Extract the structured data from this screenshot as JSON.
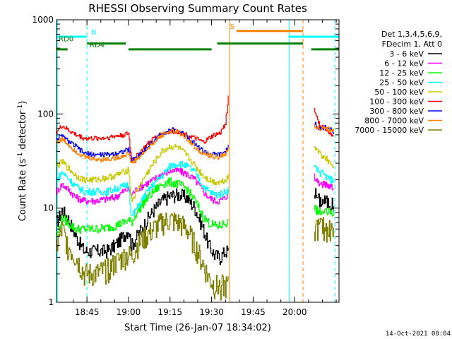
{
  "chart_data": {
    "type": "line",
    "title": "RHESSI Observing Summary Count Rates",
    "xlabel": "Start Time (26-Jan-07 18:34:02)",
    "ylabel_main": "Count Rate (s",
    "ylabel_sup1": "-1",
    "ylabel_mid": " detector",
    "ylabel_sup2": "-1",
    "ylabel_end": ")",
    "y_scale": "log",
    "ylim": [
      1,
      1000
    ],
    "xlim_minutes": [
      34,
      136
    ],
    "x_ticks": [
      {
        "minute": 45,
        "label": "18:45"
      },
      {
        "minute": 60,
        "label": "19:00"
      },
      {
        "minute": 75,
        "label": "19:15"
      },
      {
        "minute": 90,
        "label": "19:30"
      },
      {
        "minute": 105,
        "label": "19:45"
      },
      {
        "minute": 120,
        "label": "20:00"
      }
    ],
    "y_ticks": [
      {
        "value": 1,
        "label": "1"
      },
      {
        "value": 10,
        "label": "10"
      },
      {
        "value": 100,
        "label": "100"
      },
      {
        "value": 1000,
        "label": "1000"
      }
    ],
    "legend_header": [
      "Det 1,3,4,5,6,9,",
      "FDecim 1, Att 0"
    ],
    "legend_position": "right",
    "series": [
      {
        "name": "3 - 6 keV",
        "color": "#000000",
        "points": [
          [
            34,
            7
          ],
          [
            36,
            9.5
          ],
          [
            38,
            8
          ],
          [
            41,
            5
          ],
          [
            44,
            3.5
          ],
          [
            48,
            3.5
          ],
          [
            52,
            3.5
          ],
          [
            55,
            4
          ],
          [
            58,
            5
          ],
          [
            60,
            6
          ],
          [
            61,
            4
          ],
          [
            63,
            5
          ],
          [
            66,
            7
          ],
          [
            69,
            9.5
          ],
          [
            72,
            12
          ],
          [
            75,
            13.5
          ],
          [
            78,
            14
          ],
          [
            81,
            13
          ],
          [
            84,
            10
          ],
          [
            87,
            6
          ],
          [
            89,
            4
          ],
          [
            91,
            3.2
          ],
          [
            93,
            3
          ],
          [
            95,
            3.5
          ],
          [
            96,
            3.5
          ]
        ]
      },
      {
        "name": "6 - 12 keV",
        "color": "#ff00ff",
        "points": [
          [
            34,
            15
          ],
          [
            36,
            18
          ],
          [
            38,
            16
          ],
          [
            41,
            13
          ],
          [
            44,
            12
          ],
          [
            48,
            12
          ],
          [
            52,
            12.5
          ],
          [
            55,
            13
          ],
          [
            58,
            15
          ],
          [
            60,
            16
          ],
          [
            61,
            14
          ],
          [
            63,
            16
          ],
          [
            66,
            18
          ],
          [
            69,
            20
          ],
          [
            72,
            23
          ],
          [
            75,
            25
          ],
          [
            78,
            25
          ],
          [
            81,
            23
          ],
          [
            84,
            20
          ],
          [
            87,
            15
          ],
          [
            89,
            13
          ],
          [
            91,
            12
          ],
          [
            93,
            12
          ],
          [
            95,
            13
          ],
          [
            96,
            15
          ]
        ]
      },
      {
        "name": "12 - 25 keV",
        "color": "#00ff00",
        "points": [
          [
            34,
            5
          ],
          [
            36,
            8
          ],
          [
            38,
            7
          ],
          [
            41,
            6
          ],
          [
            44,
            6
          ],
          [
            48,
            6
          ],
          [
            52,
            6.2
          ],
          [
            55,
            6.5
          ],
          [
            58,
            7
          ],
          [
            60,
            7.5
          ],
          [
            61,
            7
          ],
          [
            63,
            9
          ],
          [
            66,
            12
          ],
          [
            69,
            15
          ],
          [
            72,
            18
          ],
          [
            75,
            19
          ],
          [
            78,
            18
          ],
          [
            81,
            16
          ],
          [
            84,
            12
          ],
          [
            87,
            8
          ],
          [
            89,
            7
          ],
          [
            91,
            6.5
          ],
          [
            93,
            6.5
          ],
          [
            95,
            7
          ],
          [
            96,
            7
          ]
        ]
      },
      {
        "name": "25 - 50 keV",
        "color": "#00ffff",
        "points": [
          [
            34,
            20
          ],
          [
            36,
            24
          ],
          [
            38,
            21
          ],
          [
            41,
            17
          ],
          [
            44,
            15
          ],
          [
            48,
            15
          ],
          [
            52,
            15
          ],
          [
            55,
            16
          ],
          [
            58,
            17
          ],
          [
            60,
            18
          ],
          [
            61,
            8
          ],
          [
            63,
            10
          ],
          [
            66,
            14
          ],
          [
            69,
            18
          ],
          [
            72,
            22
          ],
          [
            75,
            28
          ],
          [
            78,
            30
          ],
          [
            81,
            28
          ],
          [
            84,
            24
          ],
          [
            87,
            17
          ],
          [
            89,
            15
          ],
          [
            91,
            14
          ],
          [
            93,
            14
          ],
          [
            95,
            15
          ],
          [
            96,
            16
          ]
        ]
      },
      {
        "name": "50 - 100 keV",
        "color": "#c8c800",
        "points": [
          [
            34,
            28
          ],
          [
            36,
            31
          ],
          [
            38,
            27
          ],
          [
            41,
            22
          ],
          [
            44,
            20
          ],
          [
            48,
            20
          ],
          [
            52,
            21
          ],
          [
            55,
            22
          ],
          [
            58,
            24
          ],
          [
            60,
            26
          ],
          [
            61,
            12
          ],
          [
            63,
            15
          ],
          [
            66,
            22
          ],
          [
            69,
            30
          ],
          [
            72,
            40
          ],
          [
            75,
            45
          ],
          [
            78,
            44
          ],
          [
            81,
            36
          ],
          [
            84,
            28
          ],
          [
            87,
            22
          ],
          [
            89,
            20
          ],
          [
            91,
            19
          ],
          [
            93,
            19
          ],
          [
            95,
            20
          ],
          [
            96,
            22
          ]
        ]
      },
      {
        "name": "100 - 300 keV",
        "color": "#ff0000",
        "points": [
          [
            34,
            65
          ],
          [
            36,
            75
          ],
          [
            38,
            68
          ],
          [
            41,
            60
          ],
          [
            44,
            55
          ],
          [
            48,
            55
          ],
          [
            52,
            56
          ],
          [
            55,
            58
          ],
          [
            58,
            60
          ],
          [
            60,
            62
          ],
          [
            61,
            33
          ],
          [
            63,
            36
          ],
          [
            66,
            45
          ],
          [
            69,
            55
          ],
          [
            72,
            62
          ],
          [
            75,
            65
          ],
          [
            78,
            65
          ],
          [
            81,
            60
          ],
          [
            84,
            55
          ],
          [
            87,
            50
          ],
          [
            89,
            55
          ],
          [
            91,
            60
          ],
          [
            93,
            62
          ],
          [
            95,
            80
          ],
          [
            96,
            150
          ]
        ]
      },
      {
        "name": "300 - 800 keV",
        "color": "#0000ff",
        "points": [
          [
            34,
            55
          ],
          [
            36,
            58
          ],
          [
            38,
            52
          ],
          [
            41,
            45
          ],
          [
            44,
            38
          ],
          [
            48,
            37
          ],
          [
            52,
            37
          ],
          [
            55,
            38
          ],
          [
            58,
            40
          ],
          [
            60,
            42
          ],
          [
            61,
            32
          ],
          [
            63,
            35
          ],
          [
            66,
            42
          ],
          [
            69,
            52
          ],
          [
            72,
            62
          ],
          [
            75,
            68
          ],
          [
            78,
            66
          ],
          [
            81,
            58
          ],
          [
            84,
            48
          ],
          [
            87,
            40
          ],
          [
            89,
            38
          ],
          [
            91,
            37
          ],
          [
            93,
            37
          ],
          [
            95,
            40
          ],
          [
            96,
            45
          ]
        ]
      },
      {
        "name": "800 - 7000 keV",
        "color": "#ff8000",
        "points": [
          [
            34,
            50
          ],
          [
            36,
            54
          ],
          [
            38,
            48
          ],
          [
            41,
            40
          ],
          [
            44,
            35
          ],
          [
            48,
            33
          ],
          [
            52,
            33
          ],
          [
            55,
            34
          ],
          [
            58,
            36
          ],
          [
            60,
            38
          ],
          [
            61,
            30
          ],
          [
            63,
            33
          ],
          [
            66,
            40
          ],
          [
            69,
            50
          ],
          [
            72,
            60
          ],
          [
            75,
            66
          ],
          [
            78,
            64
          ],
          [
            81,
            55
          ],
          [
            84,
            44
          ],
          [
            87,
            38
          ],
          [
            89,
            36
          ],
          [
            91,
            35
          ],
          [
            93,
            35
          ],
          [
            95,
            38
          ],
          [
            96,
            42
          ]
        ]
      },
      {
        "name": "7000 - 15000 keV",
        "color": "#808000",
        "points": [
          [
            34,
            4
          ],
          [
            36,
            6
          ],
          [
            38,
            4
          ],
          [
            41,
            3
          ],
          [
            44,
            2
          ],
          [
            48,
            2
          ],
          [
            52,
            2.2
          ],
          [
            55,
            2.6
          ],
          [
            58,
            3
          ],
          [
            60,
            3.2
          ],
          [
            61,
            3
          ],
          [
            63,
            4
          ],
          [
            66,
            5
          ],
          [
            69,
            6
          ],
          [
            72,
            7
          ],
          [
            75,
            7.5
          ],
          [
            78,
            7
          ],
          [
            81,
            6
          ],
          [
            84,
            4
          ],
          [
            87,
            2.5
          ],
          [
            89,
            1.8
          ],
          [
            91,
            1.5
          ],
          [
            93,
            1.5
          ],
          [
            95,
            1.5
          ],
          [
            96,
            1.5
          ]
        ]
      }
    ],
    "series_after_gap": [
      {
        "name": "3 - 6 keV",
        "points": [
          [
            127,
            15
          ],
          [
            129,
            12
          ],
          [
            131,
            12
          ],
          [
            133,
            11
          ],
          [
            134,
            11
          ]
        ]
      },
      {
        "name": "6 - 12 keV",
        "points": [
          [
            127,
            22
          ],
          [
            129,
            18
          ],
          [
            131,
            18
          ],
          [
            133,
            17
          ],
          [
            134,
            17
          ]
        ]
      },
      {
        "name": "12 - 25 keV",
        "points": [
          [
            127,
            10
          ],
          [
            129,
            9
          ],
          [
            131,
            9
          ],
          [
            133,
            9
          ],
          [
            134,
            9
          ]
        ]
      },
      {
        "name": "25 - 50 keV",
        "points": [
          [
            127,
            27
          ],
          [
            129,
            24
          ],
          [
            131,
            22
          ],
          [
            133,
            20
          ],
          [
            134,
            20
          ]
        ]
      },
      {
        "name": "50 - 100 keV",
        "points": [
          [
            127,
            45
          ],
          [
            129,
            38
          ],
          [
            131,
            34
          ],
          [
            133,
            30
          ],
          [
            134,
            28
          ]
        ]
      },
      {
        "name": "100 - 300 keV",
        "points": [
          [
            127,
            110
          ],
          [
            129,
            75
          ],
          [
            131,
            70
          ],
          [
            133,
            62
          ],
          [
            134,
            60
          ]
        ]
      },
      {
        "name": "300 - 800 keV",
        "points": [
          [
            127,
            80
          ],
          [
            129,
            70
          ],
          [
            131,
            72
          ],
          [
            133,
            68
          ],
          [
            134,
            65
          ]
        ]
      },
      {
        "name": "800 - 7000 keV",
        "points": [
          [
            127,
            75
          ],
          [
            129,
            70
          ],
          [
            131,
            70
          ],
          [
            133,
            68
          ],
          [
            134,
            68
          ]
        ]
      },
      {
        "name": "7000 - 15000 keV",
        "points": [
          [
            127,
            6
          ],
          [
            129,
            6.5
          ],
          [
            131,
            6
          ],
          [
            133,
            6
          ],
          [
            134,
            6
          ]
        ]
      }
    ],
    "flag_labels": {
      "N": "N",
      "RD0": "RD0",
      "RD4": "RD4",
      "S": "S"
    },
    "flag_bars": [
      {
        "color": "#00ffff",
        "level": 660,
        "segments": [
          [
            34,
            45
          ],
          [
            118,
            136
          ]
        ]
      },
      {
        "color": "#008000",
        "level": 560,
        "segments": [
          [
            45,
            59
          ],
          [
            92,
            123
          ]
        ]
      },
      {
        "color": "#008000",
        "level": 485,
        "segments": [
          [
            34,
            38
          ],
          [
            60,
            90
          ],
          [
            126,
            136
          ]
        ]
      },
      {
        "color": "#ff8000",
        "level": 760,
        "segments": [
          [
            99,
            123
          ]
        ]
      }
    ],
    "vertical_markers": [
      {
        "minute": 34.3,
        "color": "#00ffff",
        "style": "solid"
      },
      {
        "minute": 45,
        "color": "#00ffff",
        "style": "dashed"
      },
      {
        "minute": 96.5,
        "color": "#ff8000",
        "style": "solid"
      },
      {
        "minute": 118,
        "color": "#00ffff",
        "style": "solid"
      },
      {
        "minute": 123,
        "color": "#ff8000",
        "style": "dashed"
      },
      {
        "minute": 134.5,
        "color": "#00ffff",
        "style": "dashed"
      }
    ]
  },
  "footer": {
    "timestamp": "14-Oct-2021 00:04"
  }
}
